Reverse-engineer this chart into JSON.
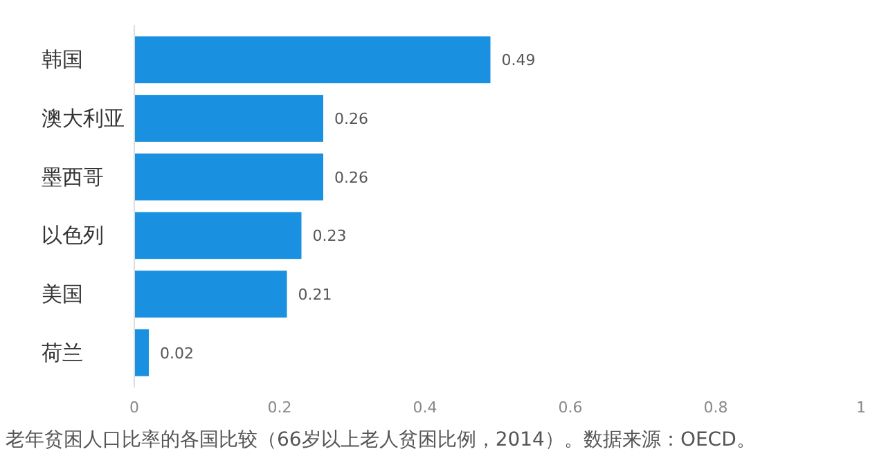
{
  "chart_data": {
    "type": "bar",
    "orientation": "horizontal",
    "categories": [
      "韩国",
      "澳大利亚",
      "墨西哥",
      "以色列",
      "美国",
      "荷兰"
    ],
    "values": [
      0.49,
      0.26,
      0.26,
      0.23,
      0.21,
      0.02
    ],
    "color": "#1a90e0",
    "xlim": [
      0,
      1
    ],
    "xticks": [
      0,
      0.2,
      0.4,
      0.6,
      0.8,
      1
    ],
    "data_labels": true,
    "annotations": [
      "老年贫困人口比率的各国比较（66岁以上老人贫困比例，2014）。数据来源：OECD。"
    ]
  }
}
